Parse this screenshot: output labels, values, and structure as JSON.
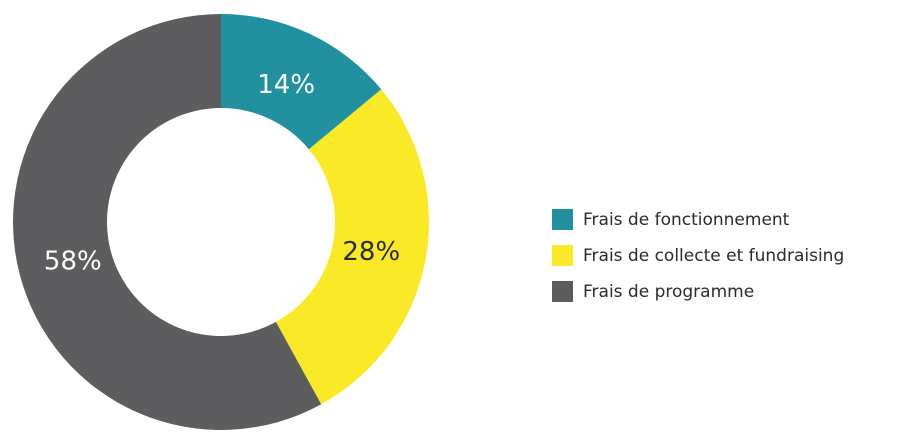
{
  "chart_data": {
    "type": "pie",
    "categories": [
      "Frais de fonctionnement",
      "Frais de collecte et fundraising",
      "Frais de programme"
    ],
    "values": [
      14,
      28,
      58
    ],
    "value_labels": [
      "14%",
      "28%",
      "58%"
    ],
    "colors": [
      "#2191a0",
      "#f9e926",
      "#5d5c5e"
    ],
    "legend": "right"
  }
}
